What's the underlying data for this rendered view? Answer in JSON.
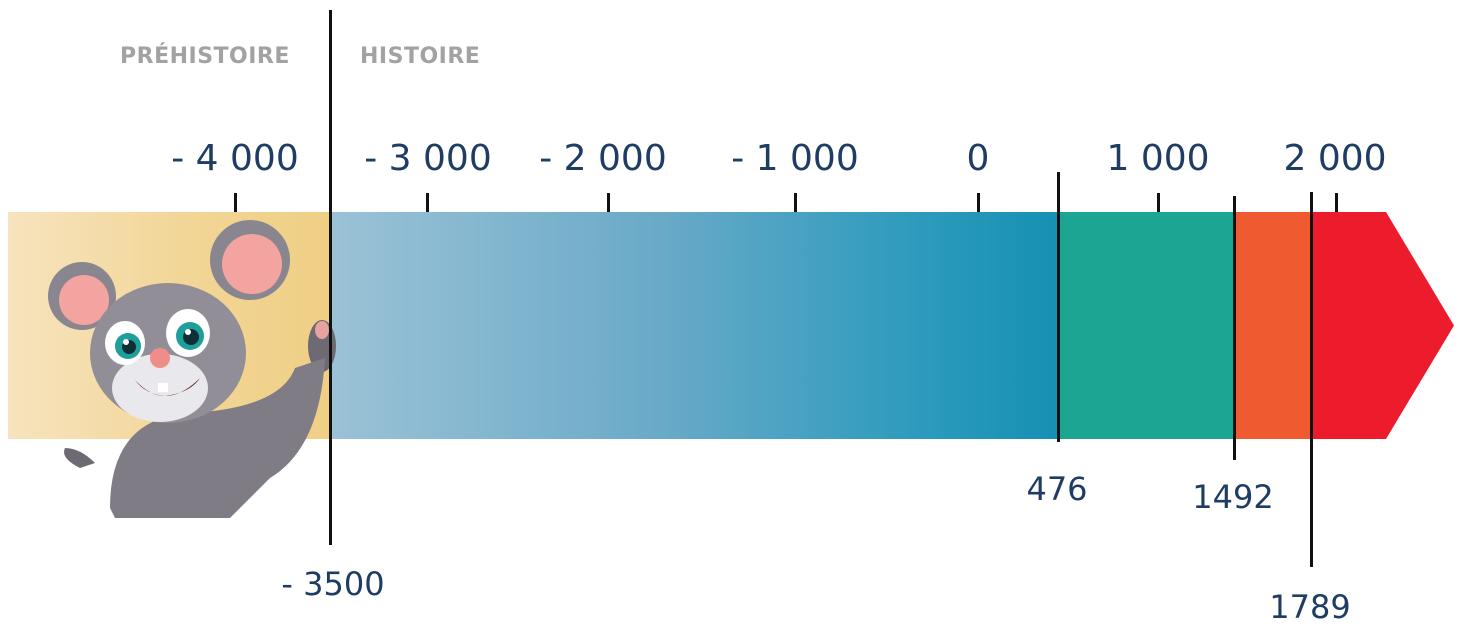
{
  "eras": {
    "prehistory": "PRÉHISTOIRE",
    "history": "HISTOIRE"
  },
  "scale_ticks": [
    "- 4 000",
    "- 3 000",
    "- 2 000",
    "- 1 000",
    "0",
    "1 000",
    "2 000"
  ],
  "period_boundaries": [
    "- 3500",
    "476",
    "1492",
    "1789"
  ],
  "colors": {
    "prehistory_band": "#f0d089",
    "antiquity_band_start": "#9bc2d6",
    "antiquity_band_end": "#1690b3",
    "middle_ages_band": "#1da593",
    "modern_band": "#ef5a30",
    "contemporary_band": "#ec1c2d",
    "text_dark_blue": "#1f3d63",
    "era_label_gray": "#a2a2a2"
  },
  "mascot": "cartoon-mouse-image"
}
